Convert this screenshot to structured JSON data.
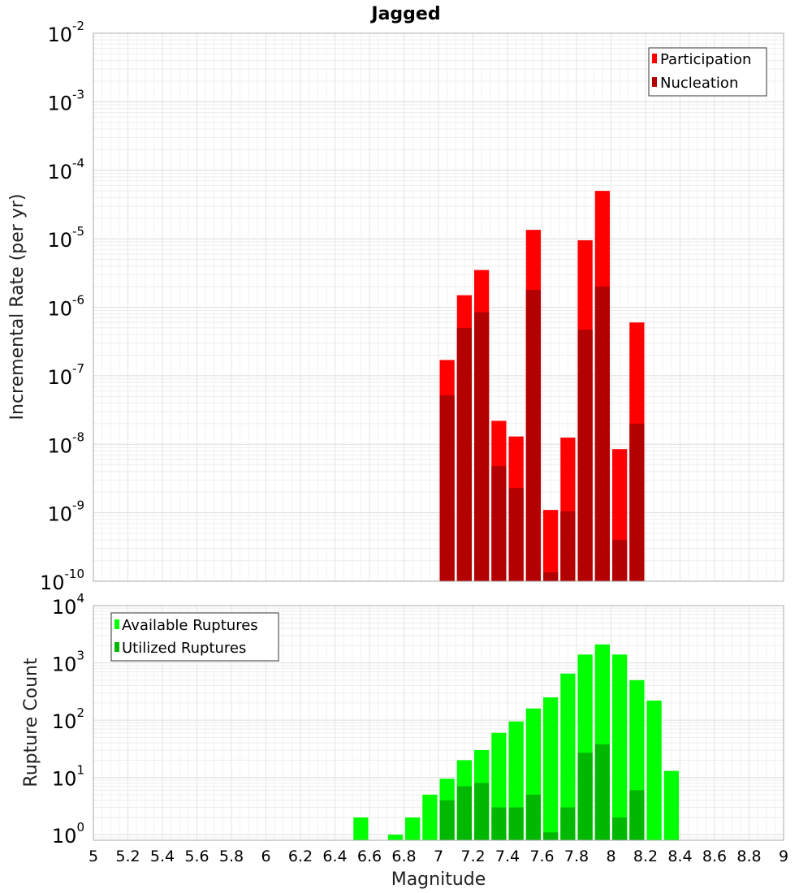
{
  "chart_data": [
    {
      "type": "bar",
      "title": "Jagged",
      "xlabel": "",
      "ylabel": "Incremental Rate (per yr)",
      "yscale": "log",
      "ylim": [
        1e-10,
        0.01
      ],
      "xlim": [
        5,
        9
      ],
      "x_ticks": [
        "5",
        "5.2",
        "5.4",
        "5.6",
        "5.8",
        "6",
        "6.2",
        "6.4",
        "6.6",
        "6.8",
        "7",
        "7.2",
        "7.4",
        "7.6",
        "7.8",
        "8",
        "8.2",
        "8.4",
        "8.6",
        "8.8",
        "9"
      ],
      "y_ticks": [
        {
          "base": "10",
          "exp": "-2"
        },
        {
          "base": "10",
          "exp": "-3"
        },
        {
          "base": "10",
          "exp": "-4"
        },
        {
          "base": "10",
          "exp": "-5"
        },
        {
          "base": "10",
          "exp": "-6"
        },
        {
          "base": "10",
          "exp": "-7"
        },
        {
          "base": "10",
          "exp": "-8"
        },
        {
          "base": "10",
          "exp": "-9"
        },
        {
          "base": "10",
          "exp": "-10"
        }
      ],
      "grid": true,
      "legend_position": "top-right",
      "x": [
        7.05,
        7.15,
        7.25,
        7.35,
        7.45,
        7.55,
        7.65,
        7.75,
        7.85,
        7.95,
        8.05,
        8.15
      ],
      "series": [
        {
          "name": "Participation",
          "color": "#ff0000",
          "values": [
            1.7e-07,
            1.5e-06,
            3.5e-06,
            2.2e-08,
            1.3e-08,
            1.35e-05,
            1.1e-09,
            1.25e-08,
            9.5e-06,
            5e-05,
            8.5e-09,
            6e-07
          ]
        },
        {
          "name": "Nucleation",
          "color": "#b30000",
          "values": [
            5.2e-08,
            5e-07,
            8.5e-07,
            4.8e-09,
            2.3e-09,
            1.8e-06,
            1.35e-10,
            1.05e-09,
            4.7e-07,
            2e-06,
            4e-10,
            2e-08
          ]
        }
      ]
    },
    {
      "type": "bar",
      "title": "",
      "xlabel": "Magnitude",
      "ylabel": "Rupture Count",
      "yscale": "log",
      "ylim": [
        0.8,
        10000
      ],
      "xlim": [
        5,
        9
      ],
      "x_ticks": [
        "5",
        "5.2",
        "5.4",
        "5.6",
        "5.8",
        "6",
        "6.2",
        "6.4",
        "6.6",
        "6.8",
        "7",
        "7.2",
        "7.4",
        "7.6",
        "7.8",
        "8",
        "8.2",
        "8.4",
        "8.6",
        "8.8",
        "9"
      ],
      "y_ticks": [
        {
          "base": "10",
          "exp": "4"
        },
        {
          "base": "10",
          "exp": "3"
        },
        {
          "base": "10",
          "exp": "2"
        },
        {
          "base": "10",
          "exp": "1"
        },
        {
          "base": "10",
          "exp": "0"
        }
      ],
      "grid": true,
      "legend_position": "top-left",
      "x": [
        6.55,
        6.75,
        6.85,
        6.95,
        7.05,
        7.15,
        7.25,
        7.35,
        7.45,
        7.55,
        7.65,
        7.75,
        7.85,
        7.95,
        8.05,
        8.15,
        8.25,
        8.35
      ],
      "series": [
        {
          "name": "Available Ruptures",
          "color": "#00ff00",
          "values": [
            2,
            1,
            2,
            5,
            9.5,
            20,
            30,
            60,
            95,
            160,
            250,
            650,
            1400,
            2100,
            1400,
            500,
            220,
            13
          ]
        },
        {
          "name": "Utilized Ruptures",
          "color": "#00b800",
          "values": [
            0,
            0,
            0,
            0,
            4,
            7,
            8,
            3,
            3,
            5,
            1.1,
            3,
            27,
            38,
            2,
            6,
            0,
            0
          ]
        }
      ]
    }
  ]
}
